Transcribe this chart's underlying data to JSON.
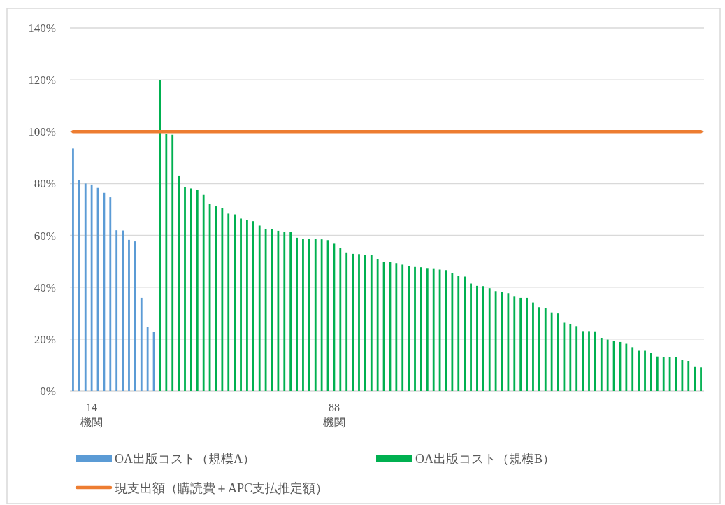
{
  "chart_data": {
    "type": "bar",
    "categories": [
      null,
      null,
      null,
      "14 機関",
      null,
      null,
      null,
      null,
      null,
      null,
      null,
      null,
      null,
      null,
      null,
      null,
      null,
      null,
      null,
      null,
      null,
      null,
      null,
      null,
      null,
      null,
      null,
      null,
      null,
      null,
      null,
      null,
      null,
      null,
      null,
      null,
      null,
      null,
      null,
      null,
      null,
      null,
      "88 機関",
      null,
      null,
      null,
      null,
      null,
      null,
      null,
      null,
      null,
      null,
      null,
      null,
      null,
      null,
      null,
      null,
      null,
      null,
      null,
      null,
      null,
      null,
      null,
      null,
      null,
      null,
      null,
      null,
      null,
      null,
      null,
      null,
      null,
      null,
      null,
      null,
      null,
      null,
      null,
      null,
      null,
      null,
      null,
      null,
      null,
      null,
      null,
      null,
      null,
      null,
      null,
      null,
      null,
      null,
      null,
      null,
      null,
      null,
      null
    ],
    "series": [
      {
        "name": "OA出版コスト（規模A）",
        "color": "#5b9bd5",
        "values": [
          93.5,
          81.4,
          80.0,
          79.6,
          78.3,
          76.4,
          74.7,
          62.0,
          61.9,
          58.3,
          57.7,
          35.9,
          24.8,
          22.8,
          null,
          null,
          null,
          null,
          null,
          null,
          null,
          null,
          null,
          null,
          null,
          null,
          null,
          null,
          null,
          null,
          null,
          null,
          null,
          null,
          null,
          null,
          null,
          null,
          null,
          null,
          null,
          null,
          null,
          null,
          null,
          null,
          null,
          null,
          null,
          null,
          null,
          null,
          null,
          null,
          null,
          null,
          null,
          null,
          null,
          null,
          null,
          null,
          null,
          null,
          null,
          null,
          null,
          null,
          null,
          null,
          null,
          null,
          null,
          null,
          null,
          null,
          null,
          null,
          null,
          null,
          null,
          null,
          null,
          null,
          null,
          null,
          null,
          null,
          null,
          null,
          null,
          null,
          null,
          null,
          null,
          null,
          null,
          null,
          null,
          null,
          null,
          null
        ]
      },
      {
        "name": "OA出版コスト（規模B）",
        "color": "#00b050",
        "values": [
          null,
          null,
          null,
          null,
          null,
          null,
          null,
          null,
          null,
          null,
          null,
          null,
          null,
          null,
          120,
          99.1,
          98.8,
          83.1,
          78.5,
          78.1,
          77.6,
          75.6,
          72.1,
          71.2,
          70.6,
          68.4,
          68.1,
          66.5,
          65.9,
          65.5,
          63.8,
          62.5,
          62.4,
          61.8,
          61.5,
          61.3,
          59.1,
          58.8,
          58.7,
          58.6,
          58.5,
          58.2,
          56.8,
          55.1,
          53.2,
          52.9,
          52.8,
          52.5,
          52.4,
          50.9,
          49.9,
          49.8,
          49.3,
          48.7,
          48.2,
          47.8,
          47.7,
          47.4,
          47.3,
          46.8,
          46.6,
          45.5,
          44.5,
          44.1,
          41.4,
          40.5,
          40.4,
          39.6,
          38.5,
          38.2,
          37.7,
          36.6,
          35.9,
          35.9,
          34.1,
          32.3,
          32.1,
          30.3,
          29.9,
          26.3,
          25.9,
          25.0,
          23.1,
          23.1,
          23.0,
          20.5,
          19.8,
          19.3,
          18.9,
          18.2,
          16.9,
          15.5,
          15.5,
          14.7,
          13.3,
          13.1,
          13.1,
          13.1,
          12.1,
          11.6,
          9.5,
          9.1
        ]
      },
      {
        "name": "現支出額（購読費＋APC支払推定額）",
        "type": "line",
        "color": "#ed7d31",
        "values": [
          100,
          100,
          100,
          100,
          100,
          100,
          100,
          100,
          100,
          100,
          100,
          100,
          100,
          100,
          100,
          100,
          100,
          100,
          100,
          100,
          100,
          100,
          100,
          100,
          100,
          100,
          100,
          100,
          100,
          100,
          100,
          100,
          100,
          100,
          100,
          100,
          100,
          100,
          100,
          100,
          100,
          100,
          100,
          100,
          100,
          100,
          100,
          100,
          100,
          100,
          100,
          100,
          100,
          100,
          100,
          100,
          100,
          100,
          100,
          100,
          100,
          100,
          100,
          100,
          100,
          100,
          100,
          100,
          100,
          100,
          100,
          100,
          100,
          100,
          100,
          100,
          100,
          100,
          100,
          100,
          100,
          100,
          100,
          100,
          100,
          100,
          100,
          100,
          100,
          100,
          100,
          100,
          100,
          100,
          100,
          100,
          100,
          100,
          100,
          100,
          100,
          100
        ]
      }
    ],
    "ylim": [
      0,
      140
    ],
    "yticks": [
      {
        "value": 0,
        "label": "0%"
      },
      {
        "value": 20,
        "label": "20%"
      },
      {
        "value": 40,
        "label": "40%"
      },
      {
        "value": 60,
        "label": "60%"
      },
      {
        "value": 80,
        "label": "80%"
      },
      {
        "value": 100,
        "label": "100%"
      },
      {
        "value": 120,
        "label": "120%"
      },
      {
        "value": 140,
        "label": "140%"
      }
    ],
    "grid": "y",
    "legend": "bottom"
  }
}
